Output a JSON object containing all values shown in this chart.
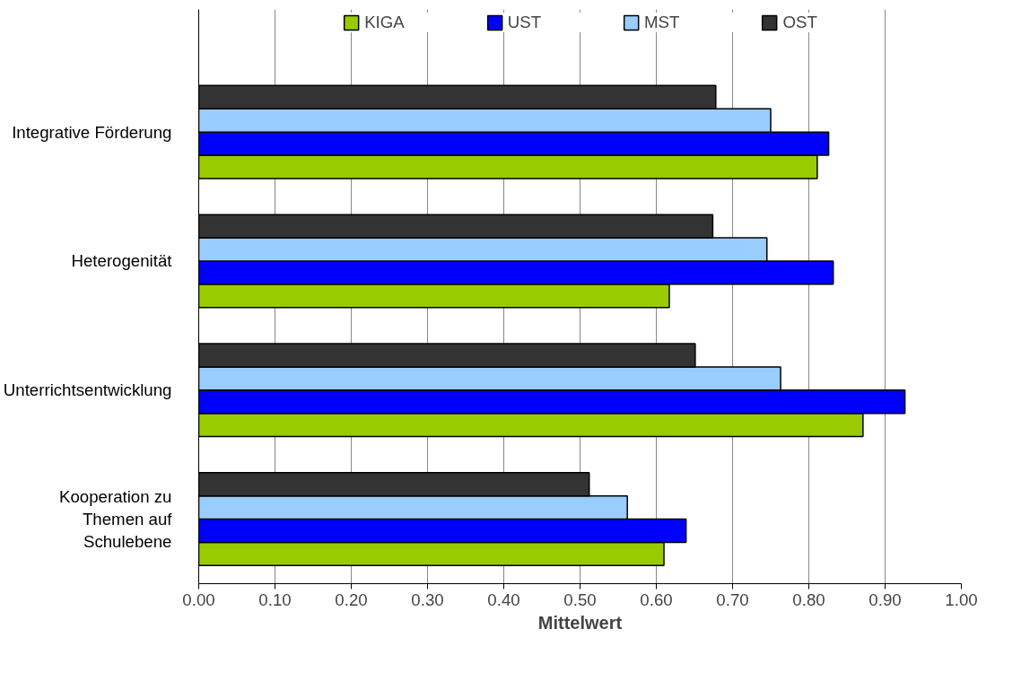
{
  "chart_data": {
    "type": "bar",
    "orientation": "horizontal",
    "xlabel": "Mittelwert",
    "categories": [
      "Integrative Förderung",
      "Heterogenität",
      "Unterrichtsentwicklung",
      "Kooperation zu Themen auf Schulebene"
    ],
    "series": [
      {
        "name": "KIGA",
        "color": "#99cc00",
        "values": [
          0.811,
          0.617,
          0.871,
          0.61
        ]
      },
      {
        "name": "UST",
        "color": "#0000ff",
        "values": [
          0.826,
          0.832,
          0.926,
          0.639
        ]
      },
      {
        "name": "MST",
        "color": "#99ccff",
        "values": [
          0.75,
          0.745,
          0.763,
          0.562
        ]
      },
      {
        "name": "OST",
        "color": "#333333",
        "values": [
          0.678,
          0.674,
          0.651,
          0.512
        ]
      }
    ],
    "xlim": [
      0,
      1
    ],
    "xticks": [
      {
        "value": 0,
        "label": "0.00"
      },
      {
        "value": 0.1,
        "label": "0.10"
      },
      {
        "value": 0.2,
        "label": "0.20"
      },
      {
        "value": 0.3,
        "label": "0.30"
      },
      {
        "value": 0.4,
        "label": "0.40"
      },
      {
        "value": 0.5,
        "label": "0.50"
      },
      {
        "value": 0.6,
        "label": "0.60"
      },
      {
        "value": 0.7,
        "label": "0.70"
      },
      {
        "value": 0.8,
        "label": "0.80"
      },
      {
        "value": 0.9,
        "label": "0.90"
      },
      {
        "value": 1,
        "label": "1.00"
      }
    ],
    "grid": "x",
    "legend": "top"
  }
}
